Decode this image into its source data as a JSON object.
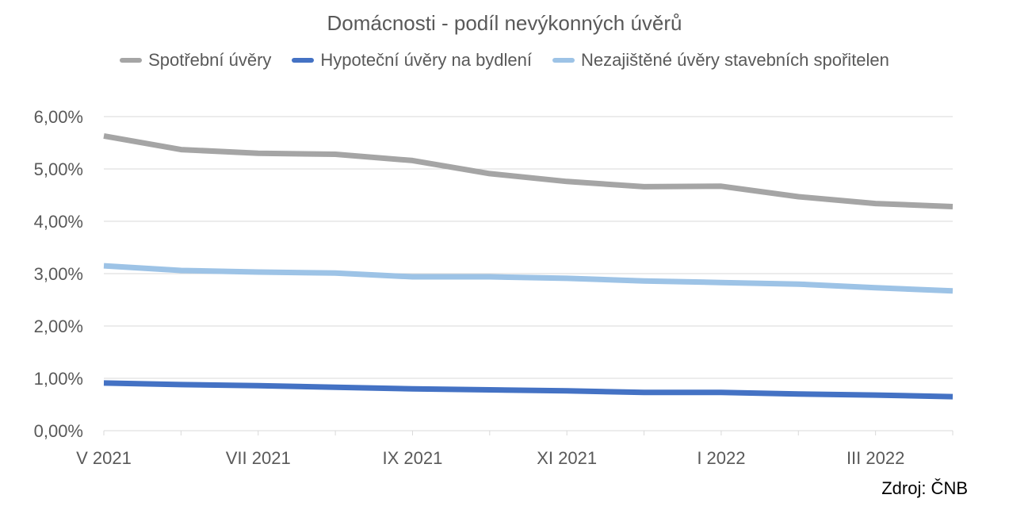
{
  "chart_data": {
    "type": "line",
    "title": "Domácnosti - podíl nevýkonných úvěrů",
    "x": [
      "V 2021",
      "VI 2021",
      "VII 2021",
      "VIII 2021",
      "IX 2021",
      "X 2021",
      "XI 2021",
      "XII 2021",
      "I 2022",
      "II 2022",
      "III 2022",
      "IV 2022"
    ],
    "x_tick_labels": [
      "V 2021",
      "",
      "VII 2021",
      "",
      "IX 2021",
      "",
      "XI 2021",
      "",
      "I 2022",
      "",
      "III 2022",
      ""
    ],
    "y_tick_labels": [
      "0,00%",
      "1,00%",
      "2,00%",
      "3,00%",
      "4,00%",
      "5,00%",
      "6,00%"
    ],
    "ylim": [
      0,
      6
    ],
    "grid": true,
    "legend_position": "top",
    "series": [
      {
        "name": "Spotřební úvěry",
        "color": "#a5a5a5",
        "values": [
          5.63,
          5.37,
          5.3,
          5.28,
          5.16,
          4.91,
          4.76,
          4.66,
          4.67,
          4.47,
          4.34,
          4.28
        ]
      },
      {
        "name": "Hypoteční úvěry na bydlení",
        "color": "#4472c4",
        "values": [
          0.91,
          0.88,
          0.86,
          0.83,
          0.8,
          0.78,
          0.76,
          0.73,
          0.73,
          0.7,
          0.68,
          0.65
        ]
      },
      {
        "name": "Nezajištěné úvěry stavebních spořitelen",
        "color": "#9dc3e6",
        "values": [
          3.15,
          3.06,
          3.03,
          3.01,
          2.94,
          2.94,
          2.91,
          2.86,
          2.83,
          2.8,
          2.73,
          2.67
        ]
      }
    ]
  },
  "source": "Zdroj: ČNB"
}
